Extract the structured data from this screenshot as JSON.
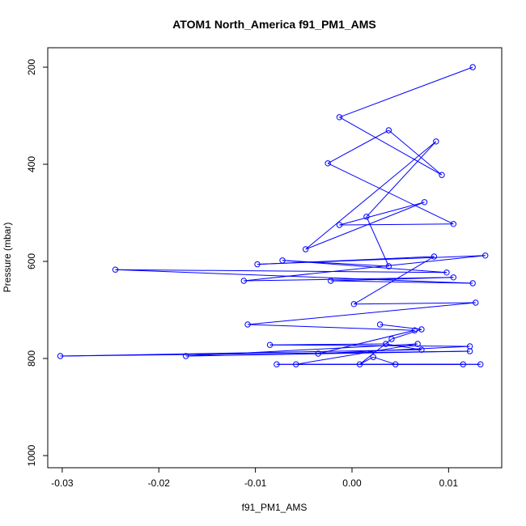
{
  "chart_data": {
    "type": "line",
    "title": "ATOM1 North_America f91_PM1_AMS",
    "xlabel": "f91_PM1_AMS",
    "ylabel": "Pressure (mbar)",
    "xlim": [
      -0.0315,
      0.0155
    ],
    "ylim": [
      1025,
      160
    ],
    "y_reversed": true,
    "x_ticks": [
      -0.03,
      -0.02,
      -0.01,
      0.0,
      0.01
    ],
    "x_tick_labels": [
      "-0.03",
      "-0.02",
      "-0.01",
      "0.00",
      "0.01"
    ],
    "y_ticks": [
      200,
      400,
      600,
      800,
      1000
    ],
    "y_tick_labels": [
      "200",
      "400",
      "600",
      "800",
      "1000"
    ],
    "series_color": "#0000ff",
    "grid": false,
    "series": [
      {
        "x": [
          0.0125,
          -0.0013,
          0.0093,
          0.0038,
          -0.0025,
          0.0105,
          -0.0013,
          0.0075,
          -0.0048,
          0.0087,
          0.0015,
          0.0038,
          -0.0072,
          0.0098,
          -0.0245,
          0.0125,
          -0.0022,
          0.0105,
          -0.0112,
          0.0138,
          -0.0098,
          0.0085,
          0.0002,
          0.0128,
          -0.0108,
          0.0065,
          -0.0035,
          0.0122,
          -0.0085,
          0.0035,
          0.0072,
          -0.0302,
          0.0122,
          -0.0172,
          0.0068,
          -0.0058,
          0.0133,
          -0.0078,
          0.0115,
          0.0045,
          0.0022,
          0.0008,
          0.0041,
          0.0072,
          0.0029
        ],
        "y": [
          200,
          303,
          422,
          330,
          398,
          523,
          525,
          478,
          575,
          353,
          508,
          610,
          598,
          623,
          617,
          645,
          640,
          633,
          640,
          588,
          606,
          590,
          688,
          685,
          730,
          742,
          790,
          775,
          772,
          770,
          782,
          795,
          785,
          795,
          770,
          812,
          812,
          812,
          812,
          812,
          797,
          812,
          760,
          740,
          730
        ]
      }
    ]
  }
}
